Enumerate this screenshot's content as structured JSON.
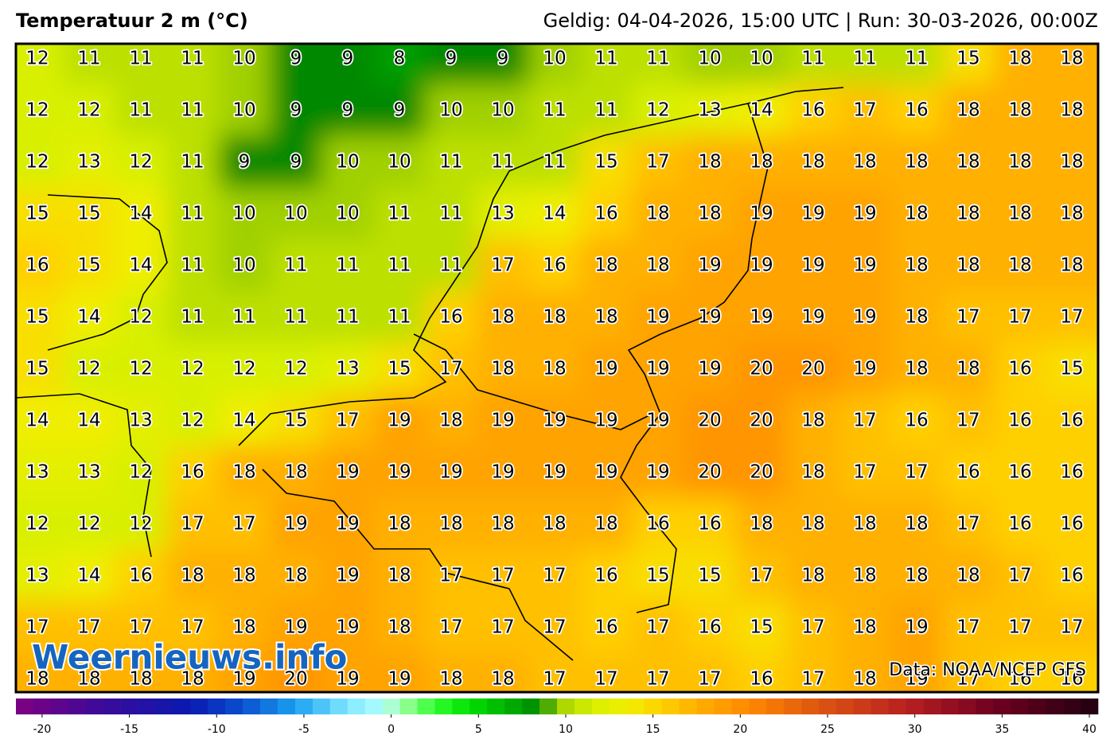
{
  "header": {
    "title": "Temperatuur 2 m (°C)",
    "valid": "Geldig: 04-04-2026, 15:00 UTC | Run: 30-03-2026, 00:00Z"
  },
  "map": {
    "values": [
      [
        12,
        11,
        11,
        11,
        10,
        9,
        9,
        8,
        9,
        9,
        10,
        11,
        11,
        10,
        10,
        11,
        11,
        11,
        15,
        18,
        18
      ],
      [
        12,
        12,
        11,
        11,
        10,
        9,
        9,
        9,
        10,
        10,
        11,
        11,
        12,
        13,
        14,
        16,
        17,
        16,
        18,
        18,
        18
      ],
      [
        12,
        13,
        12,
        11,
        9,
        9,
        10,
        10,
        11,
        11,
        11,
        15,
        17,
        18,
        18,
        18,
        18,
        18,
        18,
        18,
        18
      ],
      [
        15,
        15,
        14,
        11,
        10,
        10,
        10,
        11,
        11,
        13,
        14,
        16,
        18,
        18,
        19,
        19,
        19,
        18,
        18,
        18,
        18
      ],
      [
        16,
        15,
        14,
        11,
        10,
        11,
        11,
        11,
        11,
        17,
        16,
        18,
        18,
        19,
        19,
        19,
        19,
        18,
        18,
        18,
        18
      ],
      [
        15,
        14,
        12,
        11,
        11,
        11,
        11,
        11,
        16,
        18,
        18,
        18,
        19,
        19,
        19,
        19,
        19,
        18,
        17,
        17,
        17
      ],
      [
        15,
        12,
        12,
        12,
        12,
        12,
        13,
        15,
        17,
        18,
        18,
        19,
        19,
        19,
        20,
        20,
        19,
        18,
        18,
        16,
        15
      ],
      [
        14,
        14,
        13,
        12,
        14,
        15,
        17,
        19,
        18,
        19,
        19,
        19,
        19,
        20,
        20,
        18,
        17,
        16,
        17,
        16,
        16
      ],
      [
        13,
        13,
        12,
        16,
        18,
        18,
        19,
        19,
        19,
        19,
        19,
        19,
        19,
        20,
        20,
        18,
        17,
        17,
        16,
        16,
        16
      ],
      [
        12,
        12,
        12,
        17,
        17,
        19,
        19,
        18,
        18,
        18,
        18,
        18,
        16,
        16,
        18,
        18,
        18,
        18,
        17,
        16,
        16
      ],
      [
        13,
        14,
        16,
        18,
        18,
        18,
        19,
        18,
        17,
        17,
        17,
        16,
        15,
        15,
        17,
        18,
        18,
        18,
        18,
        17,
        16
      ],
      [
        17,
        17,
        17,
        17,
        18,
        19,
        19,
        18,
        17,
        17,
        17,
        16,
        17,
        16,
        15,
        17,
        18,
        19,
        17,
        17,
        17
      ],
      [
        18,
        18,
        18,
        18,
        19,
        20,
        19,
        19,
        18,
        18,
        17,
        17,
        17,
        17,
        16,
        17,
        18,
        19,
        17,
        16,
        16
      ]
    ],
    "colorbar": {
      "range": [
        -21,
        41
      ],
      "ticks": [
        -20,
        -15,
        -10,
        -5,
        0,
        5,
        10,
        15,
        20,
        25,
        30,
        35,
        40
      ],
      "stops": [
        [
          -21,
          "#800080"
        ],
        [
          -16,
          "#3a0a9a"
        ],
        [
          -11,
          "#0a1ab0"
        ],
        [
          -8,
          "#0a50d0"
        ],
        [
          -5,
          "#1aa0f0"
        ],
        [
          -2,
          "#80e8ff"
        ],
        [
          0,
          "#b0ffff"
        ],
        [
          1,
          "#a8ffa8"
        ],
        [
          3,
          "#30ff30"
        ],
        [
          5,
          "#00e000"
        ],
        [
          9,
          "#008800"
        ],
        [
          10,
          "#a0d000"
        ],
        [
          12,
          "#d8f000"
        ],
        [
          14,
          "#f0ee00"
        ],
        [
          16,
          "#ffd000"
        ],
        [
          18,
          "#ffb000"
        ],
        [
          21,
          "#ff8800"
        ],
        [
          25,
          "#dd5510"
        ],
        [
          30,
          "#b82020"
        ],
        [
          35,
          "#700020"
        ],
        [
          41,
          "#200010"
        ]
      ]
    },
    "watermark": "Weernieuws.info",
    "source": "Data: NOAA/NCEP GFS"
  }
}
